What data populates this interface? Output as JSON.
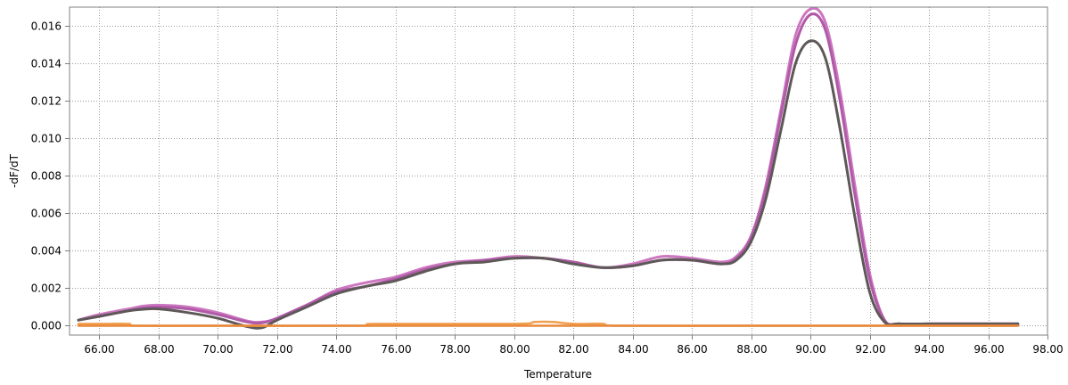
{
  "chart_data": {
    "type": "line",
    "title": "",
    "xlabel": "Temperature",
    "ylabel": "-dF/dT",
    "xlim": [
      65,
      98
    ],
    "ylim": [
      -0.0005,
      0.017
    ],
    "xticks": [
      66,
      68,
      70,
      72,
      74,
      76,
      78,
      80,
      82,
      84,
      86,
      88,
      90,
      92,
      94,
      96,
      98
    ],
    "xtick_labels": [
      "66.00",
      "68.00",
      "70.00",
      "72.00",
      "74.00",
      "76.00",
      "78.00",
      "80.00",
      "82.00",
      "84.00",
      "86.00",
      "88.00",
      "90.00",
      "92.00",
      "94.00",
      "96.00",
      "98.00"
    ],
    "yticks": [
      0,
      0.002,
      0.004,
      0.006,
      0.008,
      0.01,
      0.012,
      0.014,
      0.016
    ],
    "ytick_labels": [
      "0.000",
      "0.002",
      "0.004",
      "0.006",
      "0.008",
      "0.010",
      "0.012",
      "0.014",
      "0.016"
    ],
    "grid": true,
    "legend": "none",
    "series": [
      {
        "color": "#cc77c0",
        "points": [
          [
            65.3,
            0.0003
          ],
          [
            66,
            0.0006
          ],
          [
            67,
            0.0009
          ],
          [
            67.5,
            0.00105
          ],
          [
            68,
            0.0011
          ],
          [
            69,
            0.001
          ],
          [
            70,
            0.0007
          ],
          [
            71,
            0.00025
          ],
          [
            71.5,
            0.0002
          ],
          [
            72,
            0.0004
          ],
          [
            73,
            0.0011
          ],
          [
            74,
            0.0019
          ],
          [
            75,
            0.0023
          ],
          [
            76,
            0.0026
          ],
          [
            77,
            0.0031
          ],
          [
            78,
            0.0034
          ],
          [
            79,
            0.0035
          ],
          [
            80,
            0.0037
          ],
          [
            81,
            0.0036
          ],
          [
            82,
            0.0034
          ],
          [
            83,
            0.0031
          ],
          [
            84,
            0.0033
          ],
          [
            85,
            0.0037
          ],
          [
            86,
            0.0036
          ],
          [
            87,
            0.0034
          ],
          [
            87.5,
            0.0037
          ],
          [
            88,
            0.0048
          ],
          [
            88.5,
            0.0075
          ],
          [
            89,
            0.0115
          ],
          [
            89.5,
            0.0155
          ],
          [
            90,
            0.0169
          ],
          [
            90.5,
            0.0162
          ],
          [
            91,
            0.0125
          ],
          [
            91.5,
            0.0075
          ],
          [
            92,
            0.0028
          ],
          [
            92.5,
            0.0003
          ],
          [
            93,
            0.0001
          ],
          [
            94,
            0.0001
          ],
          [
            95,
            0.0001
          ],
          [
            96,
            0.0001
          ],
          [
            97,
            0.0001
          ]
        ]
      },
      {
        "color": "#b05aa8",
        "points": [
          [
            65.3,
            0.0003
          ],
          [
            66,
            0.0005
          ],
          [
            67,
            0.0008
          ],
          [
            67.5,
            0.00095
          ],
          [
            68,
            0.001
          ],
          [
            69,
            0.0009
          ],
          [
            70,
            0.0006
          ],
          [
            71,
            0.0002
          ],
          [
            71.5,
            0.00015
          ],
          [
            72,
            0.0004
          ],
          [
            73,
            0.0011
          ],
          [
            74,
            0.0018
          ],
          [
            75,
            0.0021
          ],
          [
            76,
            0.0025
          ],
          [
            77,
            0.003
          ],
          [
            78,
            0.0033
          ],
          [
            79,
            0.0035
          ],
          [
            80,
            0.0036
          ],
          [
            81,
            0.0036
          ],
          [
            82,
            0.0034
          ],
          [
            83,
            0.0031
          ],
          [
            84,
            0.0032
          ],
          [
            85,
            0.0035
          ],
          [
            86,
            0.0035
          ],
          [
            87,
            0.0033
          ],
          [
            87.5,
            0.0036
          ],
          [
            88,
            0.0047
          ],
          [
            88.5,
            0.0073
          ],
          [
            89,
            0.0112
          ],
          [
            89.5,
            0.015
          ],
          [
            90,
            0.0166
          ],
          [
            90.5,
            0.0158
          ],
          [
            91,
            0.012
          ],
          [
            91.5,
            0.007
          ],
          [
            92,
            0.0025
          ],
          [
            92.5,
            0.0003
          ],
          [
            93,
            0.0001
          ],
          [
            94,
            0.0001
          ],
          [
            95,
            0.0001
          ],
          [
            96,
            0.0001
          ],
          [
            97,
            0.0001
          ]
        ]
      },
      {
        "color": "#5e5858",
        "points": [
          [
            65.3,
            0.0003
          ],
          [
            66,
            0.0005
          ],
          [
            67,
            0.0008
          ],
          [
            67.5,
            0.00088
          ],
          [
            68,
            0.0009
          ],
          [
            69,
            0.0007
          ],
          [
            70,
            0.0004
          ],
          [
            71,
            -5e-05
          ],
          [
            71.5,
            -0.0001
          ],
          [
            72,
            0.0003
          ],
          [
            73,
            0.001
          ],
          [
            74,
            0.0017
          ],
          [
            75,
            0.0021
          ],
          [
            76,
            0.0024
          ],
          [
            77,
            0.0029
          ],
          [
            78,
            0.0033
          ],
          [
            79,
            0.0034
          ],
          [
            80,
            0.0036
          ],
          [
            81,
            0.0036
          ],
          [
            82,
            0.0033
          ],
          [
            83,
            0.0031
          ],
          [
            84,
            0.0032
          ],
          [
            85,
            0.0035
          ],
          [
            86,
            0.0035
          ],
          [
            87,
            0.0033
          ],
          [
            87.5,
            0.0035
          ],
          [
            88,
            0.0045
          ],
          [
            88.5,
            0.0068
          ],
          [
            89,
            0.0104
          ],
          [
            89.5,
            0.014
          ],
          [
            90,
            0.0152
          ],
          [
            90.5,
            0.0143
          ],
          [
            91,
            0.0105
          ],
          [
            91.5,
            0.0058
          ],
          [
            92,
            0.0018
          ],
          [
            92.5,
            0.0002
          ],
          [
            93,
            0.0001
          ],
          [
            94,
            0.0001
          ],
          [
            95,
            0.0001
          ],
          [
            96,
            0.0001
          ],
          [
            97,
            0.0001
          ]
        ]
      },
      {
        "color": "#f0a050",
        "points": [
          [
            65.3,
            0.0001
          ],
          [
            66,
            0.0001
          ],
          [
            67,
            0.0001
          ],
          [
            67.2,
            0.0
          ],
          [
            70,
            0.0
          ],
          [
            75,
            0.0
          ],
          [
            75.3,
            0.0001
          ],
          [
            80,
            0.0001
          ],
          [
            80.7,
            0.0002
          ],
          [
            81.3,
            0.0002
          ],
          [
            82,
            0.0001
          ],
          [
            83,
            0.0001
          ],
          [
            83.5,
            0.0
          ],
          [
            88,
            0.0
          ],
          [
            90,
            0.0
          ],
          [
            92,
            0.0
          ],
          [
            94,
            0.0
          ],
          [
            96,
            0.0
          ],
          [
            97,
            0.0
          ]
        ]
      },
      {
        "color": "#e8883a",
        "points": [
          [
            65.3,
            0.0
          ],
          [
            70,
            0.0
          ],
          [
            75,
            0.0
          ],
          [
            80,
            0.0
          ],
          [
            85,
            0.0
          ],
          [
            90,
            0.0
          ],
          [
            95,
            0.0
          ],
          [
            97,
            0.0
          ]
        ]
      }
    ]
  }
}
